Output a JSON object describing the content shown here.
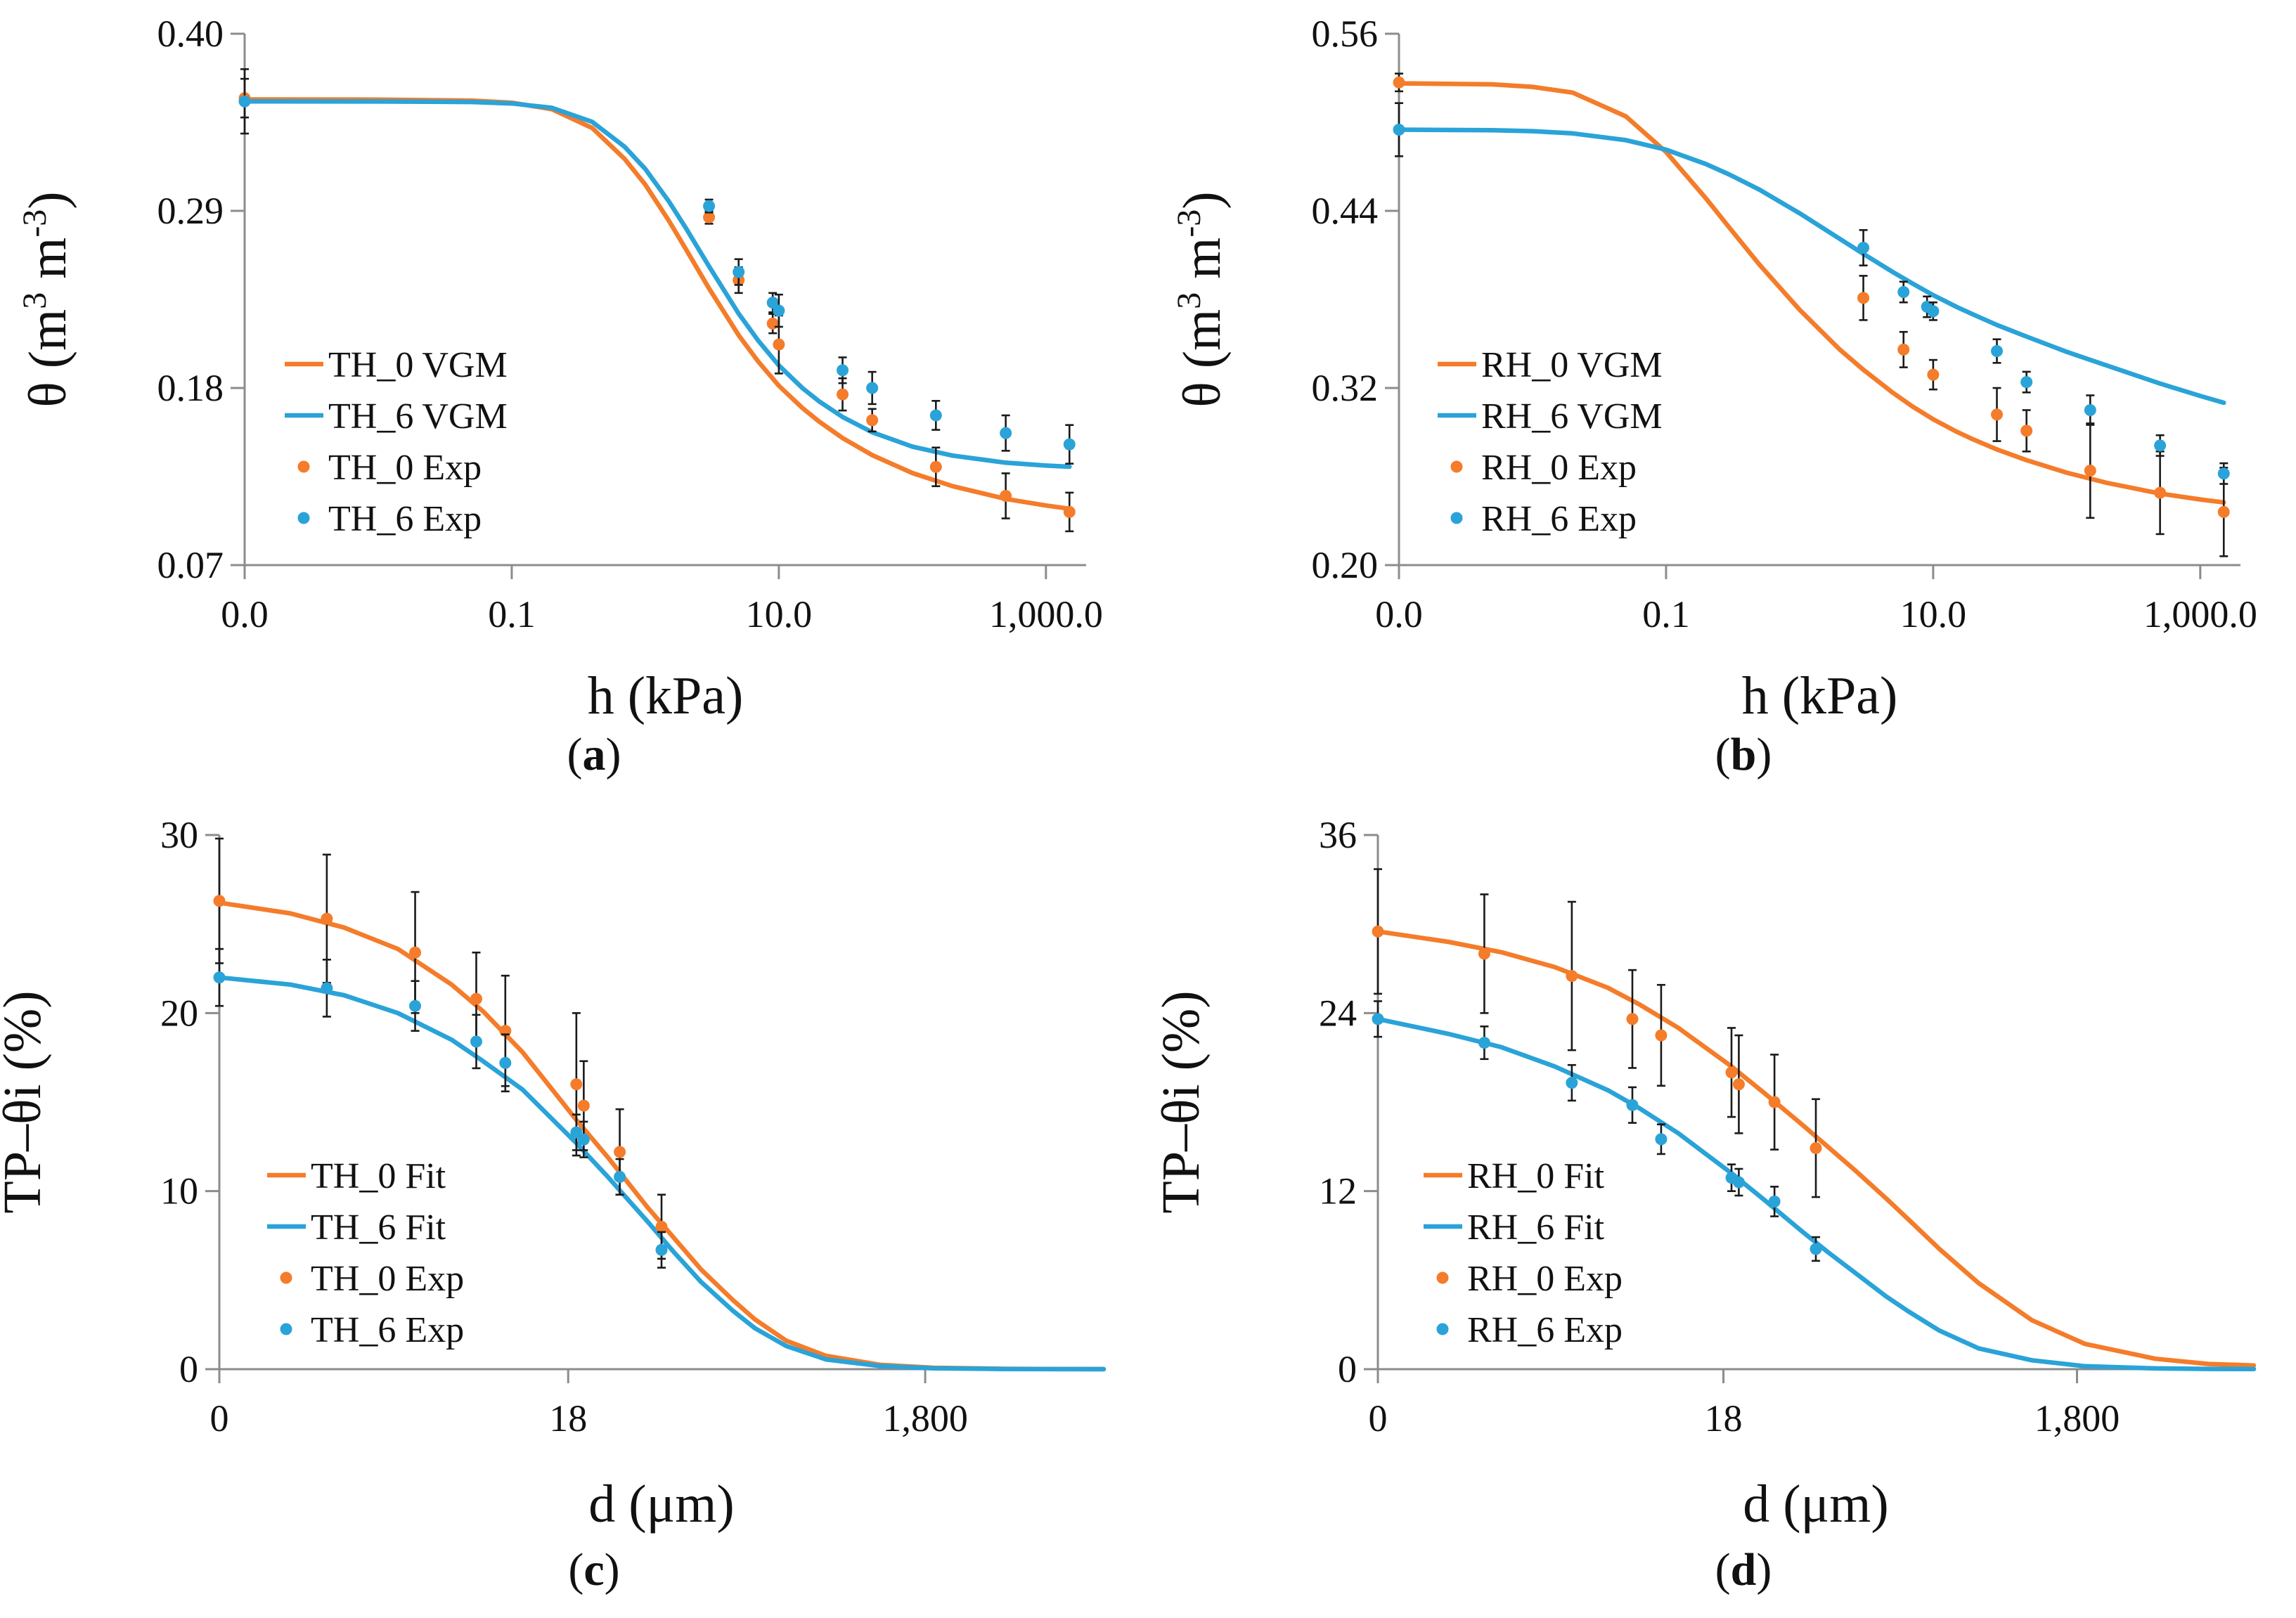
{
  "colors": {
    "orange": "#f47c2a",
    "blue": "#2aa3d8",
    "axis": "#8c8c8c",
    "error": "#1a1a1a"
  },
  "chart_data": [
    {
      "id": "a",
      "type": "line",
      "panel_label": "(a)",
      "panel_letter": "a",
      "xlabel": "h (kPa)",
      "ylabel_main": "θ (m",
      "ylabel_sup1": "3",
      "ylabel_mid": " m",
      "ylabel_sup2": "-3",
      "ylabel_end": ")",
      "x_scale": "log10",
      "xlim": [
        0.001,
        2000
      ],
      "ylim": [
        0.07,
        0.4
      ],
      "x_ticks": [
        0.001,
        0.1,
        10,
        1000
      ],
      "x_tick_labels": [
        "0.0",
        "0.1",
        "10.0",
        "1,000.0"
      ],
      "y_ticks": [
        0.07,
        0.18,
        0.29,
        0.4
      ],
      "y_tick_labels": [
        "0.07",
        "0.18",
        "0.29",
        "0.40"
      ],
      "legend_position": "center-left",
      "legend": [
        "TH_0 VGM",
        "TH_6 VGM",
        "TH_0 Exp",
        "TH_6 Exp"
      ],
      "series": [
        {
          "name": "TH_0 VGM",
          "kind": "curve",
          "color": "orange",
          "x": [
            0.001,
            0.01,
            0.05,
            0.1,
            0.2,
            0.4,
            0.7,
            1,
            1.5,
            2,
            3,
            5,
            7,
            10,
            15,
            20,
            30,
            50,
            100,
            200,
            500,
            1000,
            1500
          ],
          "y": [
            0.3592,
            0.3591,
            0.3585,
            0.3572,
            0.3531,
            0.3415,
            0.3223,
            0.3063,
            0.2839,
            0.2666,
            0.2419,
            0.2128,
            0.1965,
            0.1814,
            0.1676,
            0.1592,
            0.1489,
            0.1383,
            0.1272,
            0.119,
            0.1111,
            0.107,
            0.105
          ]
        },
        {
          "name": "TH_6 VGM",
          "kind": "curve",
          "color": "blue",
          "x": [
            0.001,
            0.01,
            0.05,
            0.1,
            0.2,
            0.4,
            0.7,
            1,
            1.5,
            2,
            3,
            5,
            7,
            10,
            15,
            20,
            30,
            50,
            100,
            200,
            500,
            1000,
            1500
          ],
          "y": [
            0.358,
            0.3579,
            0.3576,
            0.3567,
            0.354,
            0.3453,
            0.3298,
            0.316,
            0.2959,
            0.2797,
            0.2556,
            0.2262,
            0.2095,
            0.194,
            0.18,
            0.1717,
            0.162,
            0.1525,
            0.1436,
            0.138,
            0.1336,
            0.1318,
            0.1311
          ]
        },
        {
          "name": "TH_0 Exp",
          "kind": "points",
          "color": "orange",
          "x": [
            0.001,
            3,
            5,
            9,
            10,
            30,
            50,
            150,
            500,
            1500
          ],
          "y": [
            0.36,
            0.286,
            0.247,
            0.22,
            0.207,
            0.176,
            0.16,
            0.131,
            0.113,
            0.103
          ],
          "err": [
            0.012,
            0.004,
            0.008,
            0.006,
            0.018,
            0.01,
            0.007,
            0.012,
            0.014,
            0.012
          ]
        },
        {
          "name": "TH_6 Exp",
          "kind": "points",
          "color": "blue",
          "x": [
            0.001,
            3,
            5,
            9,
            10,
            30,
            50,
            150,
            500,
            1500
          ],
          "y": [
            0.358,
            0.293,
            0.252,
            0.233,
            0.228,
            0.191,
            0.18,
            0.163,
            0.152,
            0.145
          ],
          "err": [
            0.02,
            0.004,
            0.008,
            0.006,
            0.01,
            0.008,
            0.01,
            0.009,
            0.011,
            0.012
          ]
        }
      ]
    },
    {
      "id": "b",
      "type": "line",
      "panel_label": "(b)",
      "panel_letter": "b",
      "xlabel": "h (kPa)",
      "ylabel_main": "θ (m",
      "ylabel_sup1": "3",
      "ylabel_mid": " m",
      "ylabel_sup2": "-3",
      "ylabel_end": ")",
      "x_scale": "log10",
      "xlim": [
        0.001,
        2000
      ],
      "ylim": [
        0.2,
        0.56
      ],
      "x_ticks": [
        0.001,
        0.1,
        10,
        1000
      ],
      "x_tick_labels": [
        "0.0",
        "0.1",
        "10.0",
        "1,000.0"
      ],
      "y_ticks": [
        0.2,
        0.32,
        0.44,
        0.56
      ],
      "y_tick_labels": [
        "0.20",
        "0.32",
        "0.44",
        "0.56"
      ],
      "legend_position": "center-left",
      "legend": [
        "RH_0 VGM",
        "RH_6 VGM",
        "RH_0 Exp",
        "RH_6 Exp"
      ],
      "series": [
        {
          "name": "RH_0 VGM",
          "kind": "curve",
          "color": "orange",
          "x": [
            0.001,
            0.005,
            0.01,
            0.02,
            0.05,
            0.1,
            0.2,
            0.3,
            0.5,
            1,
            2,
            3,
            5,
            7,
            10,
            15,
            20,
            30,
            50,
            100,
            200,
            500,
            1000,
            1500
          ],
          "y": [
            0.5264,
            0.5257,
            0.524,
            0.5201,
            0.504,
            0.4799,
            0.4482,
            0.4283,
            0.4036,
            0.373,
            0.346,
            0.3324,
            0.3167,
            0.3075,
            0.2988,
            0.2904,
            0.2851,
            0.2784,
            0.2711,
            0.2626,
            0.2557,
            0.2485,
            0.2445,
            0.2425
          ]
        },
        {
          "name": "RH_6 VGM",
          "kind": "curve",
          "color": "blue",
          "x": [
            0.001,
            0.005,
            0.01,
            0.02,
            0.05,
            0.1,
            0.2,
            0.3,
            0.5,
            1,
            2,
            3,
            5,
            7,
            10,
            15,
            20,
            30,
            50,
            100,
            200,
            500,
            1000,
            1500
          ],
          "y": [
            0.495,
            0.4946,
            0.494,
            0.4925,
            0.4879,
            0.4815,
            0.4716,
            0.4645,
            0.4544,
            0.4384,
            0.421,
            0.4109,
            0.3985,
            0.3908,
            0.3829,
            0.3749,
            0.3697,
            0.3627,
            0.3548,
            0.3445,
            0.3352,
            0.323,
            0.3146,
            0.31
          ]
        },
        {
          "name": "RH_0 Exp",
          "kind": "points",
          "color": "orange",
          "x": [
            0.001,
            3,
            6,
            10,
            30,
            50,
            150,
            500,
            1500
          ],
          "y": [
            0.527,
            0.381,
            0.346,
            0.329,
            0.302,
            0.291,
            0.264,
            0.249,
            0.236
          ],
          "err": [
            0.006,
            0.015,
            0.012,
            0.01,
            0.018,
            0.014,
            0.032,
            0.028,
            0.03
          ]
        },
        {
          "name": "RH_6 Exp",
          "kind": "points",
          "color": "blue",
          "x": [
            0.001,
            3,
            6,
            9,
            10,
            30,
            50,
            150,
            500,
            1500
          ],
          "y": [
            0.495,
            0.415,
            0.385,
            0.375,
            0.372,
            0.345,
            0.324,
            0.305,
            0.281,
            0.262
          ],
          "err": [
            0.018,
            0.012,
            0.007,
            0.007,
            0.006,
            0.008,
            0.007,
            0.01,
            0.007,
            0.007
          ]
        }
      ]
    },
    {
      "id": "c",
      "type": "line",
      "panel_label": "(c)",
      "panel_letter": "c",
      "xlabel": "d (μm)",
      "ylabel": "TP–θi (%)",
      "x_scale": "log10",
      "xlim": [
        0.2,
        18000
      ],
      "ylim": [
        0,
        30
      ],
      "x_ticks": [
        0.2,
        18,
        1800
      ],
      "x_tick_labels": [
        "0",
        "18",
        "1,800"
      ],
      "y_ticks": [
        0,
        10,
        20,
        30
      ],
      "y_tick_labels": [
        "0",
        "10",
        "20",
        "30"
      ],
      "legend_position": "bottom-left",
      "legend": [
        "TH_0 Fit",
        "TH_6 Fit",
        "TH_0 Exp",
        "TH_6 Exp"
      ],
      "series": [
        {
          "name": "TH_0 Fit",
          "kind": "curve",
          "color": "orange",
          "x": [
            0.2,
            0.5,
            1,
            2,
            4,
            6,
            10,
            20,
            30,
            50,
            70,
            100,
            150,
            200,
            300,
            500,
            1000,
            2000,
            5000,
            10000,
            18000
          ],
          "y": [
            26.2,
            25.6,
            24.8,
            23.6,
            21.6,
            20.1,
            17.8,
            14.0,
            11.9,
            9.1,
            7.4,
            5.6,
            3.9,
            2.8,
            1.6,
            0.75,
            0.25,
            0.08,
            0.02,
            0.005,
            0.002
          ]
        },
        {
          "name": "TH_6 Fit",
          "kind": "curve",
          "color": "blue",
          "x": [
            0.2,
            0.5,
            1,
            2,
            4,
            6,
            10,
            20,
            30,
            50,
            70,
            100,
            150,
            200,
            300,
            500,
            1000,
            2000,
            5000,
            10000,
            18000
          ],
          "y": [
            22.0,
            21.6,
            21.0,
            20.0,
            18.5,
            17.3,
            15.7,
            12.7,
            10.8,
            8.3,
            6.6,
            4.9,
            3.3,
            2.3,
            1.3,
            0.55,
            0.18,
            0.05,
            0.01,
            0.004,
            0.001
          ]
        },
        {
          "name": "TH_0 Exp",
          "kind": "points",
          "color": "orange",
          "x": [
            0.2,
            0.8,
            2.5,
            5.5,
            8,
            20,
            22,
            35,
            60
          ],
          "y": [
            26.3,
            25.3,
            23.4,
            20.8,
            19.0,
            16.0,
            14.8,
            12.2,
            8.0
          ],
          "err": [
            3.5,
            3.6,
            3.4,
            2.6,
            3.1,
            4.0,
            2.5,
            2.4,
            1.8
          ]
        },
        {
          "name": "TH_6 Exp",
          "kind": "points",
          "color": "blue",
          "x": [
            0.2,
            0.8,
            2.5,
            5.5,
            8,
            20,
            22,
            35,
            60
          ],
          "y": [
            22.0,
            21.4,
            20.4,
            18.4,
            17.2,
            13.3,
            12.9,
            10.8,
            6.7
          ],
          "err": [
            1.6,
            1.6,
            1.4,
            1.5,
            1.6,
            1.0,
            1.0,
            1.0,
            1.0
          ]
        }
      ]
    },
    {
      "id": "d",
      "type": "line",
      "panel_label": "(d)",
      "panel_letter": "d",
      "xlabel": "d (μm)",
      "ylabel": "TP–θi (%)",
      "x_scale": "log10",
      "xlim": [
        0.2,
        18000
      ],
      "ylim": [
        0,
        36
      ],
      "x_ticks": [
        0.2,
        18,
        1800
      ],
      "x_tick_labels": [
        "0",
        "18",
        "1,800"
      ],
      "y_ticks": [
        0,
        12,
        24,
        36
      ],
      "y_tick_labels": [
        "0",
        "12",
        "24",
        "36"
      ],
      "legend_position": "bottom-left",
      "legend": [
        "RH_0 Fit",
        "RH_6 Fit",
        "RH_0 Exp",
        "RH_6 Exp"
      ],
      "series": [
        {
          "name": "RH_0 Fit",
          "kind": "curve",
          "color": "orange",
          "x": [
            0.2,
            0.5,
            1,
            2,
            4,
            6,
            10,
            20,
            30,
            50,
            70,
            100,
            150,
            200,
            300,
            500,
            1000,
            2000,
            5000,
            10000,
            18000
          ],
          "y": [
            29.5,
            28.8,
            28.1,
            27.1,
            25.7,
            24.6,
            23.0,
            20.4,
            18.7,
            16.5,
            15.0,
            13.4,
            11.5,
            10.1,
            8.1,
            5.8,
            3.3,
            1.7,
            0.7,
            0.35,
            0.25
          ]
        },
        {
          "name": "RH_6 Fit",
          "kind": "curve",
          "color": "blue",
          "x": [
            0.2,
            0.5,
            1,
            2,
            4,
            6,
            10,
            20,
            30,
            50,
            70,
            100,
            150,
            200,
            300,
            500,
            1000,
            2000,
            5000,
            10000,
            18000
          ],
          "y": [
            23.6,
            22.6,
            21.7,
            20.4,
            18.8,
            17.6,
            15.9,
            13.2,
            11.5,
            9.3,
            7.9,
            6.5,
            4.9,
            3.9,
            2.6,
            1.4,
            0.6,
            0.2,
            0.05,
            0.02,
            0.01
          ]
        },
        {
          "name": "RH_0 Exp",
          "kind": "points",
          "color": "orange",
          "x": [
            0.2,
            0.8,
            2.5,
            5.5,
            8,
            20,
            22,
            35,
            60
          ],
          "y": [
            29.5,
            28.0,
            26.5,
            23.6,
            22.5,
            20.0,
            19.2,
            18.0,
            14.9
          ],
          "err": [
            4.2,
            4.0,
            5.0,
            3.3,
            3.4,
            3.0,
            3.3,
            3.2,
            3.3
          ]
        },
        {
          "name": "RH_6 Exp",
          "kind": "points",
          "color": "blue",
          "x": [
            0.2,
            0.8,
            2.5,
            5.5,
            8,
            20,
            22,
            35,
            60
          ],
          "y": [
            23.6,
            22.0,
            19.3,
            17.8,
            15.5,
            12.9,
            12.6,
            11.3,
            8.1
          ],
          "err": [
            1.2,
            1.1,
            1.2,
            1.2,
            1.0,
            0.9,
            0.9,
            1.0,
            0.8
          ]
        }
      ]
    }
  ]
}
